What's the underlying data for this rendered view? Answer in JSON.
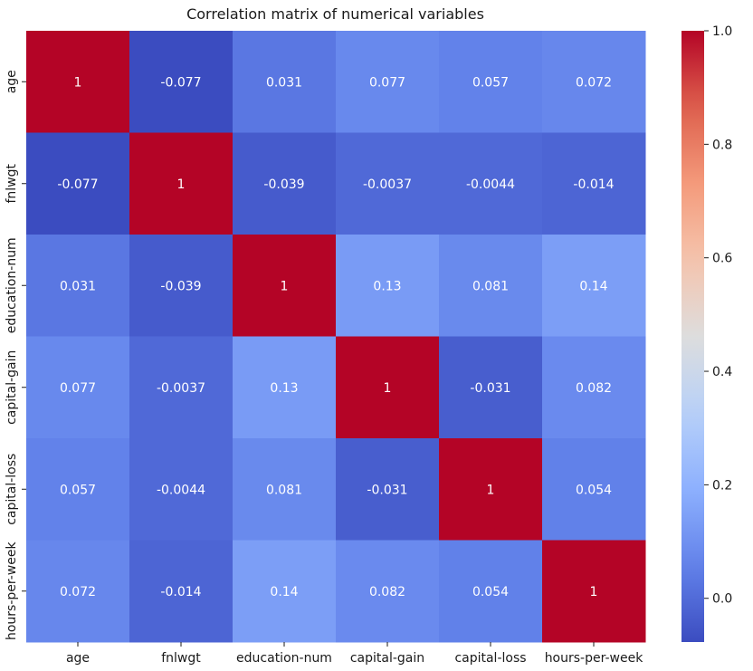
{
  "chart_data": {
    "type": "heatmap",
    "title": "Correlation matrix of numerical variables",
    "x_labels": [
      "age",
      "fnlwgt",
      "education-num",
      "capital-gain",
      "capital-loss",
      "hours-per-week"
    ],
    "y_labels": [
      "age",
      "fnlwgt",
      "education-num",
      "capital-gain",
      "capital-loss",
      "hours-per-week"
    ],
    "values": [
      [
        1,
        -0.077,
        0.031,
        0.077,
        0.057,
        0.072
      ],
      [
        -0.077,
        1,
        -0.039,
        -0.0037,
        -0.0044,
        -0.014
      ],
      [
        0.031,
        -0.039,
        1,
        0.13,
        0.081,
        0.14
      ],
      [
        0.077,
        -0.0037,
        0.13,
        1,
        -0.031,
        0.082
      ],
      [
        0.057,
        -0.0044,
        0.081,
        -0.031,
        1,
        0.054
      ],
      [
        0.072,
        -0.014,
        0.14,
        0.082,
        0.054,
        1
      ]
    ],
    "cell_labels": [
      [
        "1",
        "-0.077",
        "0.031",
        "0.077",
        "0.057",
        "0.072"
      ],
      [
        "-0.077",
        "1",
        "-0.039",
        "-0.0037",
        "-0.0044",
        "-0.014"
      ],
      [
        "0.031",
        "-0.039",
        "1",
        "0.13",
        "0.081",
        "0.14"
      ],
      [
        "0.077",
        "-0.0037",
        "0.13",
        "1",
        "-0.031",
        "0.082"
      ],
      [
        "0.057",
        "-0.0044",
        "0.081",
        "-0.031",
        "1",
        "0.054"
      ],
      [
        "0.072",
        "-0.014",
        "0.14",
        "0.082",
        "0.054",
        "1"
      ]
    ],
    "colormap": "coolwarm",
    "colorbar": {
      "range": [
        -0.077,
        1.0
      ],
      "ticks": [
        0.0,
        0.2,
        0.4,
        0.6,
        0.8,
        1.0
      ],
      "tick_labels": [
        "0.0",
        "0.2",
        "0.4",
        "0.6",
        "0.8",
        "1.0"
      ]
    },
    "grid": false
  }
}
